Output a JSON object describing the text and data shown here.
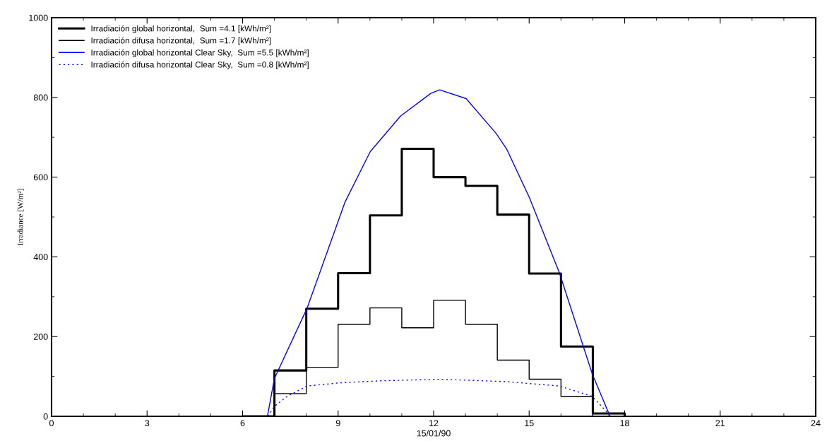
{
  "chart_data": {
    "type": "line",
    "xlabel": "15/01/90",
    "ylabel": "Irradiance [W/m²]",
    "xlim": [
      0,
      24
    ],
    "xticks": [
      0,
      3,
      6,
      9,
      12,
      15,
      18,
      21,
      24
    ],
    "ylim": [
      0,
      1000
    ],
    "yticks": [
      0,
      200,
      400,
      600,
      800,
      1000
    ],
    "grid": false,
    "legend": "top left",
    "series": [
      {
        "name": "Irradiación global horizontal,  Sum =4.1 [kWh/m²]",
        "type": "step",
        "color": "#000000",
        "line_style": "solid",
        "x": [
          6,
          7,
          8,
          9,
          10,
          11,
          12,
          13,
          14,
          15,
          16,
          17,
          18
        ],
        "values": [
          0,
          115,
          270,
          359,
          504,
          671,
          600,
          578,
          506,
          358,
          175,
          7,
          0
        ]
      },
      {
        "name": "Irradiación difusa horizontal,  Sum =1.7 [kWh/m²]",
        "type": "step",
        "color": "#000000",
        "line_style": "solid",
        "x": [
          6,
          7,
          8,
          9,
          10,
          11,
          12,
          13,
          14,
          15,
          16,
          17
        ],
        "values": [
          0,
          57,
          123,
          231,
          272,
          222,
          291,
          231,
          141,
          93,
          50,
          0
        ]
      },
      {
        "name": "Irradiación global horizontal Clear Sky,  Sum =5.5 [kWh/m²]",
        "color": "#0000ff",
        "line_style": "solid",
        "x": [
          6.78,
          7.0,
          8.03,
          9.22,
          10.01,
          10.96,
          11.91,
          12.19,
          13.02,
          13.97,
          14.29,
          15.0,
          15.95,
          16.98,
          17.54
        ],
        "values": [
          0,
          95,
          272,
          538,
          664,
          753,
          810,
          819,
          797,
          709,
          671,
          550,
          360,
          107,
          0
        ]
      },
      {
        "name": "Irradiación difusa horizontal Clear Sky,  Sum =0.8 [kWh/m²]",
        "color": "#0000ff",
        "line_style": "dotted",
        "x": [
          6.8,
          7.0,
          7.4,
          8.03,
          9.06,
          10.33,
          12.19,
          14.29,
          15.95,
          16.27,
          16.98,
          17.38,
          17.54
        ],
        "values": [
          0,
          25,
          50,
          76,
          84,
          89,
          93,
          87,
          76,
          68,
          50,
          16,
          0
        ]
      }
    ]
  }
}
